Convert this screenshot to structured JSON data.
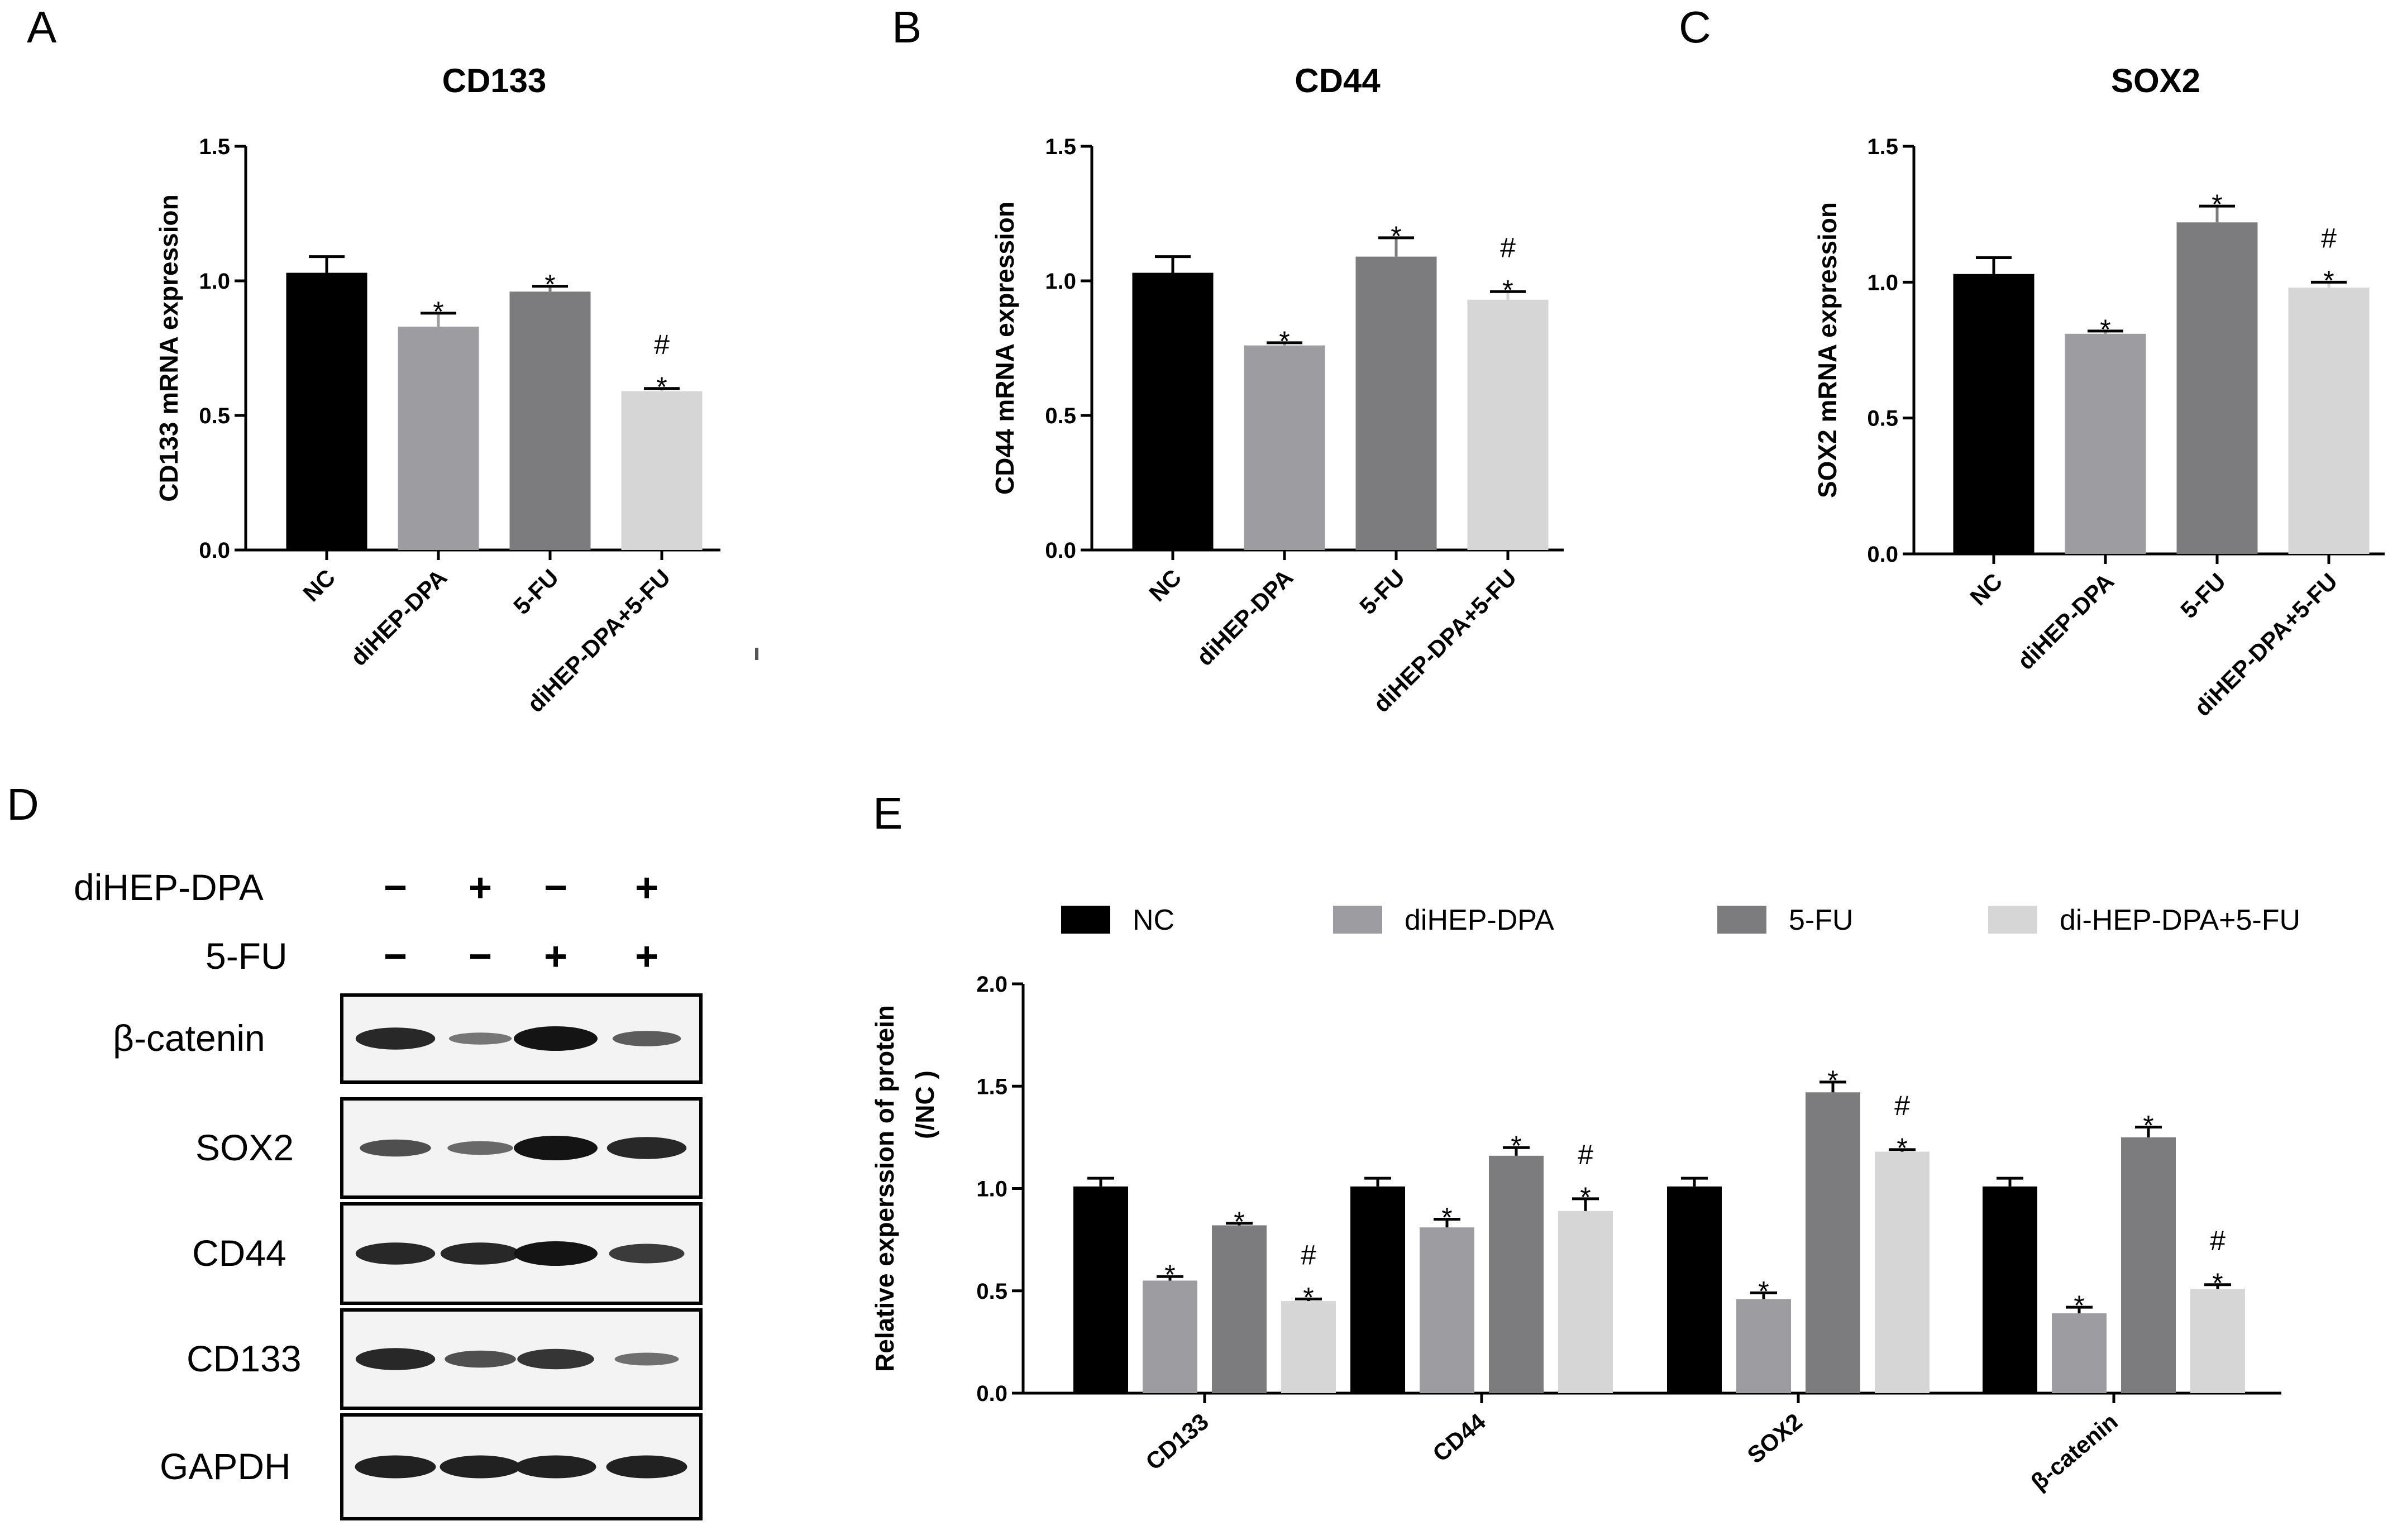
{
  "panels": {
    "a": "A",
    "b": "B",
    "c": "C",
    "d": "D",
    "e": "E"
  },
  "colors": {
    "NC": "#000000",
    "diHEP-DPA": "#9d9ca1",
    "5-FU": "#7c7c7e",
    "diHEP-DPA+5-FU": "#d6d6d6"
  },
  "chart_data": [
    {
      "id": "A",
      "type": "bar",
      "title": "CD133",
      "ylabel": "CD133 mRNA expression",
      "xlabel": "",
      "ylim": [
        0,
        1.5
      ],
      "yticks": [
        "0.0",
        "0.5",
        "1.0",
        "1.5"
      ],
      "categories": [
        "NC",
        "diHEP-DPA",
        "5-FU",
        "diHEP-DPA+5-FU"
      ],
      "values": [
        1.03,
        0.83,
        0.96,
        0.59
      ],
      "errors": [
        0.06,
        0.05,
        0.02,
        0.01
      ],
      "annotations": [
        "",
        "*",
        "*",
        "#\n*"
      ]
    },
    {
      "id": "B",
      "type": "bar",
      "title": "CD44",
      "ylabel": "CD44 mRNA expression",
      "xlabel": "",
      "ylim": [
        0,
        1.5
      ],
      "yticks": [
        "0.0",
        "0.5",
        "1.0",
        "1.5"
      ],
      "categories": [
        "NC",
        "diHEP-DPA",
        "5-FU",
        "diHEP-DPA+5-FU"
      ],
      "values": [
        1.03,
        0.76,
        1.09,
        0.93
      ],
      "errors": [
        0.06,
        0.01,
        0.07,
        0.03
      ],
      "annotations": [
        "",
        "*",
        "*",
        "#\n*"
      ]
    },
    {
      "id": "C",
      "type": "bar",
      "title": "SOX2",
      "ylabel": "SOX2 mRNA expression",
      "xlabel": "",
      "ylim": [
        0,
        1.5
      ],
      "yticks": [
        "0.0",
        "0.5",
        "1.0",
        "1.5"
      ],
      "categories": [
        "NC",
        "diHEP-DPA",
        "5-FU",
        "diHEP-DPA+5-FU"
      ],
      "values": [
        1.03,
        0.81,
        1.22,
        0.98
      ],
      "errors": [
        0.06,
        0.01,
        0.06,
        0.02
      ],
      "annotations": [
        "",
        "*",
        "*",
        "#\n*"
      ]
    },
    {
      "id": "E",
      "type": "bar",
      "title": "",
      "ylabel": "Relative experssion of protein",
      "ylabel2": "(/NC )",
      "xlabel": "",
      "ylim": [
        0,
        2.0
      ],
      "yticks": [
        "0.0",
        "0.5",
        "1.0",
        "1.5",
        "2.0"
      ],
      "categories": [
        "CD133",
        "CD44",
        "SOX2",
        "β-catenin"
      ],
      "legend_position": "top",
      "series": [
        {
          "name": "NC",
          "values": [
            1.01,
            1.01,
            1.01,
            1.01
          ],
          "errors": [
            0.04,
            0.04,
            0.04,
            0.04
          ],
          "annotations": [
            "",
            "",
            "",
            ""
          ]
        },
        {
          "name": "diHEP-DPA",
          "values": [
            0.55,
            0.81,
            0.46,
            0.39
          ],
          "errors": [
            0.02,
            0.04,
            0.03,
            0.03
          ],
          "annotations": [
            "*",
            "*",
            "*",
            "*"
          ]
        },
        {
          "name": "5-FU",
          "values": [
            0.82,
            1.16,
            1.47,
            1.25
          ],
          "errors": [
            0.01,
            0.04,
            0.05,
            0.05
          ],
          "annotations": [
            "*",
            "*",
            "*",
            "*"
          ]
        },
        {
          "name": "di-HEP-DPA+5-FU",
          "values": [
            0.45,
            0.89,
            1.18,
            0.51
          ],
          "errors": [
            0.01,
            0.06,
            0.01,
            0.02
          ],
          "annotations": [
            "#\n*",
            "#\n*",
            "#\n*",
            "#\n*"
          ]
        }
      ]
    }
  ],
  "western_blot": {
    "rows": [
      "diHEP-DPA",
      "5-FU"
    ],
    "signs": [
      [
        "−",
        "+",
        "−",
        "+"
      ],
      [
        "−",
        "−",
        "+",
        "+"
      ]
    ],
    "bands": [
      "β-catenin",
      "SOX2",
      "CD44",
      "CD133",
      "GAPDH"
    ],
    "intensity": [
      [
        0.85,
        0.25,
        1.0,
        0.45
      ],
      [
        0.55,
        0.35,
        1.0,
        0.85
      ],
      [
        0.85,
        0.85,
        1.0,
        0.7
      ],
      [
        0.85,
        0.55,
        0.75,
        0.3
      ],
      [
        0.9,
        0.9,
        0.9,
        0.9
      ]
    ]
  }
}
